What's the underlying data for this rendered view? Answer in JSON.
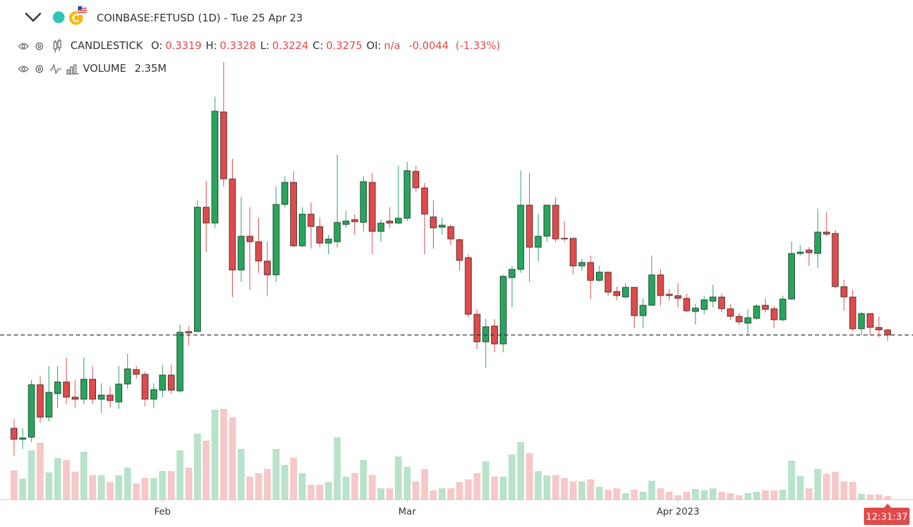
{
  "chart_data": {
    "type": "candlestick",
    "title": "COINBASE:FETUSD (1D) - Tue 25 Apr 23",
    "series_name": "CANDLESTICK",
    "open": [
      0.2465,
      0.2369,
      0.2387,
      0.2843,
      0.2561,
      0.2765,
      0.2867,
      0.2735,
      0.2717,
      0.2891,
      0.2717,
      0.2753,
      0.2693,
      0.2849,
      0.2975,
      0.2933,
      0.2717,
      0.2795,
      0.2927,
      0.2789,
      0.3305,
      0.3305,
      0.4385,
      0.4247,
      0.5213,
      0.4631,
      0.3839,
      0.4133,
      0.4085,
      0.3917,
      0.3797,
      0.4409,
      0.4601,
      0.4049,
      0.4325,
      0.4217,
      0.4073,
      0.4085,
      0.4235,
      0.4277,
      0.4253,
      0.4601,
      0.4175,
      0.4265,
      0.4247,
      0.4289,
      0.4697,
      0.4553,
      0.4301,
      0.4211,
      0.4217,
      0.4103,
      0.3947,
      0.3455,
      0.3215,
      0.3353,
      0.3197,
      0.3773,
      0.3845,
      0.4403,
      0.4037,
      0.4133,
      0.4403,
      0.4115,
      0.4115,
      0.3875,
      0.3905,
      0.3749,
      0.3821,
      0.3653,
      0.3605,
      0.3689,
      0.3443,
      0.3533,
      0.3797,
      0.3629,
      0.3617,
      0.3593,
      0.3479,
      0.3497,
      0.3569,
      0.3605,
      0.3503,
      0.3437,
      0.3377,
      0.3419,
      0.3533,
      0.3503,
      0.3407,
      0.3587,
      0.3983,
      0.4013,
      0.3983,
      0.4169,
      0.4157,
      0.3695,
      0.3605,
      0.3329,
      0.3461,
      0.3341,
      0.3319
    ],
    "high": [
      0.2543,
      0.2465,
      0.2885,
      0.2915,
      0.3005,
      0.3005,
      0.3077,
      0.2885,
      0.3077,
      0.3005,
      0.2855,
      0.2825,
      0.3005,
      0.3113,
      0.3005,
      0.2957,
      0.2855,
      0.3017,
      0.3017,
      0.3365,
      0.3353,
      0.4445,
      0.4613,
      0.5345,
      0.5645,
      0.4805,
      0.4475,
      0.4385,
      0.4295,
      0.4085,
      0.4565,
      0.4655,
      0.4697,
      0.4385,
      0.4427,
      0.4295,
      0.4145,
      0.4841,
      0.4355,
      0.4325,
      0.4655,
      0.4685,
      0.4277,
      0.4385,
      0.4745,
      0.4781,
      0.4745,
      0.4595,
      0.4445,
      0.4295,
      0.4235,
      0.4115,
      0.3977,
      0.3497,
      0.3413,
      0.3413,
      0.3797,
      0.3875,
      0.4703,
      0.4685,
      0.4325,
      0.4403,
      0.4475,
      0.4265,
      0.4115,
      0.3935,
      0.3965,
      0.3875,
      0.3821,
      0.3695,
      0.3725,
      0.3689,
      0.3593,
      0.3965,
      0.3845,
      0.3677,
      0.3725,
      0.3635,
      0.3545,
      0.3617,
      0.3713,
      0.3635,
      0.3545,
      0.3467,
      0.3497,
      0.3545,
      0.3593,
      0.3527,
      0.3617,
      0.4085,
      0.4055,
      0.4037,
      0.4373,
      0.4343,
      0.4187,
      0.3755,
      0.3665,
      0.3473,
      0.3467,
      0.3437,
      0.3328
    ],
    "low": [
      0.2225,
      0.2285,
      0.2345,
      0.2513,
      0.2525,
      0.2645,
      0.2675,
      0.2645,
      0.2675,
      0.2675,
      0.2597,
      0.2645,
      0.2633,
      0.2807,
      0.2897,
      0.2657,
      0.2645,
      0.2735,
      0.2765,
      0.2777,
      0.3185,
      0.3305,
      0.3995,
      0.4205,
      0.4565,
      0.3605,
      0.3737,
      0.3665,
      0.3815,
      0.3617,
      0.3737,
      0.4385,
      0.4037,
      0.4037,
      0.4025,
      0.4037,
      0.3977,
      0.4037,
      0.4205,
      0.4145,
      0.4175,
      0.3977,
      0.4085,
      0.4205,
      0.4235,
      0.4265,
      0.4517,
      0.3977,
      0.4025,
      0.4145,
      0.4055,
      0.3833,
      0.3425,
      0.3155,
      0.2987,
      0.3125,
      0.3125,
      0.3515,
      0.3815,
      0.3737,
      0.3917,
      0.4085,
      0.4085,
      0.4085,
      0.3803,
      0.3833,
      0.3587,
      0.3737,
      0.3617,
      0.3575,
      0.3593,
      0.3335,
      0.3335,
      0.3527,
      0.3527,
      0.3575,
      0.3515,
      0.3473,
      0.3365,
      0.3455,
      0.3515,
      0.3473,
      0.3407,
      0.3365,
      0.3275,
      0.3407,
      0.3473,
      0.3335,
      0.3395,
      0.3581,
      0.3965,
      0.3875,
      0.3857,
      0.4133,
      0.3683,
      0.3485,
      0.3305,
      0.3275,
      0.3275,
      0.3257,
      0.3224
    ],
    "close": [
      0.2369,
      0.2381,
      0.2843,
      0.2561,
      0.2777,
      0.2867,
      0.2735,
      0.2717,
      0.2891,
      0.2717,
      0.2753,
      0.2705,
      0.2849,
      0.2981,
      0.2933,
      0.2717,
      0.2801,
      0.2927,
      0.2795,
      0.3299,
      0.3293,
      0.4385,
      0.4247,
      0.5219,
      0.4631,
      0.3839,
      0.4133,
      0.4085,
      0.3917,
      0.3797,
      0.4409,
      0.4601,
      0.4049,
      0.4325,
      0.4217,
      0.4073,
      0.4109,
      0.4253,
      0.4265,
      0.4259,
      0.4607,
      0.4175,
      0.4247,
      0.4247,
      0.4289,
      0.4703,
      0.4553,
      0.4325,
      0.4205,
      0.4229,
      0.4109,
      0.3923,
      0.3455,
      0.3215,
      0.3347,
      0.3197,
      0.3785,
      0.3845,
      0.4403,
      0.4037,
      0.4133,
      0.4403,
      0.4109,
      0.4109,
      0.3875,
      0.3905,
      0.3749,
      0.3821,
      0.3647,
      0.3617,
      0.3689,
      0.3443,
      0.3533,
      0.3797,
      0.3617,
      0.3617,
      0.3593,
      0.3485,
      0.3509,
      0.3581,
      0.3605,
      0.3503,
      0.3437,
      0.3389,
      0.3425,
      0.3527,
      0.3497,
      0.3407,
      0.3587,
      0.3983,
      0.3995,
      0.3989,
      0.4169,
      0.4151,
      0.3695,
      0.3605,
      0.3329,
      0.3461,
      0.3341,
      0.3319,
      0.3275
    ],
    "up_color": "#26a65b",
    "down_color": "#e04a4a",
    "ylim": [
      0.1847,
      0.6185
    ],
    "xlim": [
      -1.6,
      102.9
    ],
    "xticks": [
      {
        "value": 17,
        "label": "Feb"
      },
      {
        "value": 45,
        "label": "Mar"
      },
      {
        "value": 76,
        "label": "Apr 2023"
      }
    ],
    "legend_labels": {
      "open": "O:",
      "high": "H:",
      "low": "L:",
      "close": "C:",
      "oi": "OI:"
    },
    "oi": "n/a",
    "change": -0.0044,
    "change_percent": {
      "value": -1.33,
      "label": "(-1.33%)"
    },
    "volume": {
      "name": "VOLUME",
      "values": [
        21000000,
        15000000,
        35500000,
        41000000,
        19500000,
        30000000,
        28500000,
        20000000,
        34500000,
        17500000,
        17500000,
        12500000,
        17500000,
        23000000,
        11500000,
        15500000,
        15500000,
        20500000,
        20500000,
        35500000,
        23000000,
        47500000,
        42500000,
        65000000,
        65500000,
        59500000,
        36500000,
        16500000,
        19000000,
        22000000,
        36500000,
        25000000,
        30000000,
        19000000,
        10500000,
        10500000,
        12500000,
        45000000,
        16500000,
        19000000,
        28500000,
        17500000,
        8000000,
        8000000,
        31000000,
        23500000,
        13000000,
        22000000,
        6500000,
        8000000,
        8000000,
        12500000,
        14500000,
        19000000,
        27500000,
        16500000,
        16500000,
        32500000,
        41500000,
        33500000,
        20500000,
        17500000,
        17500000,
        15500000,
        13000000,
        13000000,
        14500000,
        9000000,
        7000000,
        8000000,
        4500000,
        7000000,
        5500000,
        13500000,
        8000000,
        5500000,
        3000000,
        5500000,
        7500000,
        6500000,
        8000000,
        5500000,
        4500000,
        3000000,
        4500000,
        5500000,
        6500000,
        6500000,
        7000000,
        28000000,
        17000000,
        8000000,
        22000000,
        18500000,
        20000000,
        13000000,
        12500000,
        4000000,
        3500000,
        3500000,
        2350000
      ],
      "legend_value": {
        "value": 2350000,
        "label": "2.35M"
      }
    },
    "y2lim": [
      0,
      361500000
    ],
    "countdown": "12:31:37"
  }
}
